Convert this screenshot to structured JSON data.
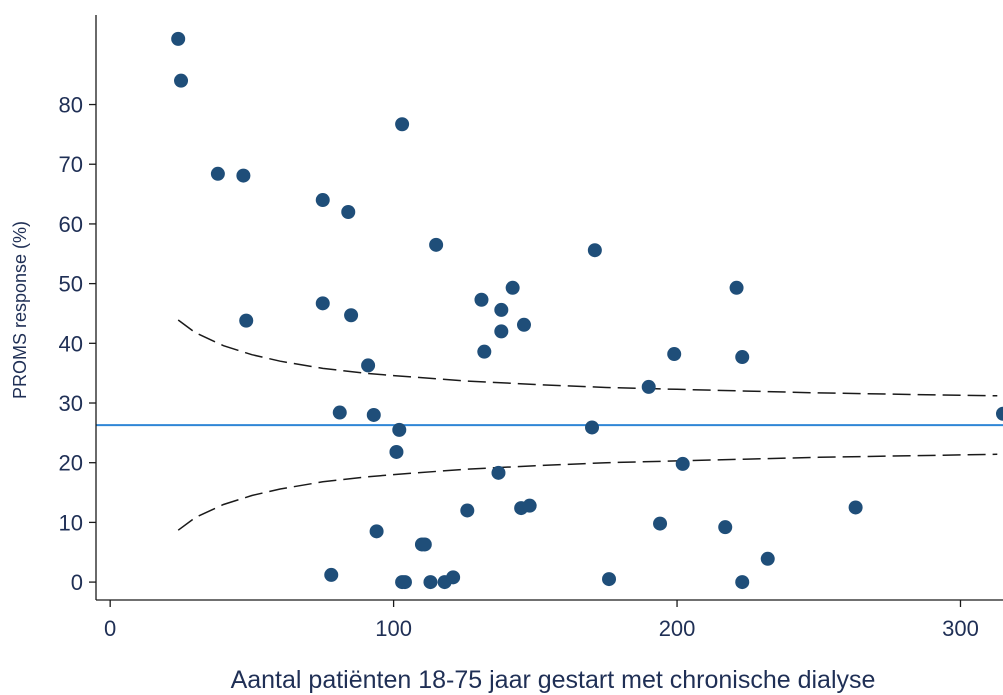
{
  "chart_data": {
    "type": "scatter",
    "title": "",
    "xlabel": "Aantal patiënten 18-75 jaar gestart met chronische dialyse",
    "ylabel": "PROMS response (%)",
    "xlim": [
      -5,
      315
    ],
    "ylim": [
      -3,
      95
    ],
    "x_ticks": [
      0,
      100,
      200,
      300
    ],
    "y_ticks": [
      0,
      10,
      20,
      30,
      40,
      50,
      60,
      70,
      80
    ],
    "grid": false,
    "legend": "none",
    "colors": {
      "points": "#1f4e79",
      "mean_line": "#2f86d6",
      "funnel": "#1a1a1a",
      "axis": "#1a1a1a",
      "text": "#1f2f55"
    },
    "mean_line_y": 26.3,
    "points": [
      {
        "x": 24,
        "y": 91
      },
      {
        "x": 25,
        "y": 84
      },
      {
        "x": 38,
        "y": 68.4
      },
      {
        "x": 47,
        "y": 68.1
      },
      {
        "x": 48,
        "y": 43.8
      },
      {
        "x": 75,
        "y": 64
      },
      {
        "x": 75,
        "y": 46.7
      },
      {
        "x": 78,
        "y": 1.2
      },
      {
        "x": 81,
        "y": 28.4
      },
      {
        "x": 84,
        "y": 62
      },
      {
        "x": 85,
        "y": 44.7
      },
      {
        "x": 91,
        "y": 36.3
      },
      {
        "x": 93,
        "y": 28
      },
      {
        "x": 94,
        "y": 8.5
      },
      {
        "x": 101,
        "y": 21.8
      },
      {
        "x": 102,
        "y": 25.5
      },
      {
        "x": 103,
        "y": 76.7
      },
      {
        "x": 103,
        "y": 0
      },
      {
        "x": 104,
        "y": 0
      },
      {
        "x": 110,
        "y": 6.3
      },
      {
        "x": 111,
        "y": 6.3
      },
      {
        "x": 113,
        "y": 0
      },
      {
        "x": 115,
        "y": 56.5
      },
      {
        "x": 118,
        "y": 0
      },
      {
        "x": 121,
        "y": 0.8
      },
      {
        "x": 126,
        "y": 12
      },
      {
        "x": 131,
        "y": 47.3
      },
      {
        "x": 132,
        "y": 38.6
      },
      {
        "x": 137,
        "y": 18.3
      },
      {
        "x": 138,
        "y": 45.6
      },
      {
        "x": 138,
        "y": 42
      },
      {
        "x": 142,
        "y": 49.3
      },
      {
        "x": 145,
        "y": 12.4
      },
      {
        "x": 146,
        "y": 43.1
      },
      {
        "x": 148,
        "y": 12.8
      },
      {
        "x": 170,
        "y": 25.9
      },
      {
        "x": 171,
        "y": 55.6
      },
      {
        "x": 176,
        "y": 0.5
      },
      {
        "x": 190,
        "y": 32.7
      },
      {
        "x": 194,
        "y": 9.8
      },
      {
        "x": 199,
        "y": 38.2
      },
      {
        "x": 202,
        "y": 19.8
      },
      {
        "x": 217,
        "y": 9.2
      },
      {
        "x": 221,
        "y": 49.3
      },
      {
        "x": 223,
        "y": 37.7
      },
      {
        "x": 223,
        "y": 0
      },
      {
        "x": 232,
        "y": 3.9
      },
      {
        "x": 263,
        "y": 12.5
      },
      {
        "x": 315,
        "y": 28.2
      }
    ],
    "funnel_upper": [
      {
        "x": 24,
        "y": 43.9
      },
      {
        "x": 30,
        "y": 41.8
      },
      {
        "x": 40,
        "y": 39.6
      },
      {
        "x": 50,
        "y": 38.1
      },
      {
        "x": 60,
        "y": 37
      },
      {
        "x": 75,
        "y": 35.8
      },
      {
        "x": 90,
        "y": 35
      },
      {
        "x": 100,
        "y": 34.6
      },
      {
        "x": 125,
        "y": 33.7
      },
      {
        "x": 150,
        "y": 33.1
      },
      {
        "x": 175,
        "y": 32.6
      },
      {
        "x": 200,
        "y": 32.3
      },
      {
        "x": 225,
        "y": 32
      },
      {
        "x": 250,
        "y": 31.7
      },
      {
        "x": 275,
        "y": 31.5
      },
      {
        "x": 300,
        "y": 31.3
      },
      {
        "x": 313,
        "y": 31.2
      }
    ],
    "funnel_lower": [
      {
        "x": 24,
        "y": 8.7
      },
      {
        "x": 30,
        "y": 10.8
      },
      {
        "x": 40,
        "y": 13
      },
      {
        "x": 50,
        "y": 14.5
      },
      {
        "x": 60,
        "y": 15.6
      },
      {
        "x": 75,
        "y": 16.8
      },
      {
        "x": 90,
        "y": 17.6
      },
      {
        "x": 100,
        "y": 18
      },
      {
        "x": 125,
        "y": 18.9
      },
      {
        "x": 150,
        "y": 19.5
      },
      {
        "x": 175,
        "y": 20
      },
      {
        "x": 200,
        "y": 20.3
      },
      {
        "x": 225,
        "y": 20.6
      },
      {
        "x": 250,
        "y": 20.9
      },
      {
        "x": 275,
        "y": 21.1
      },
      {
        "x": 300,
        "y": 21.3
      },
      {
        "x": 313,
        "y": 21.4
      }
    ]
  }
}
